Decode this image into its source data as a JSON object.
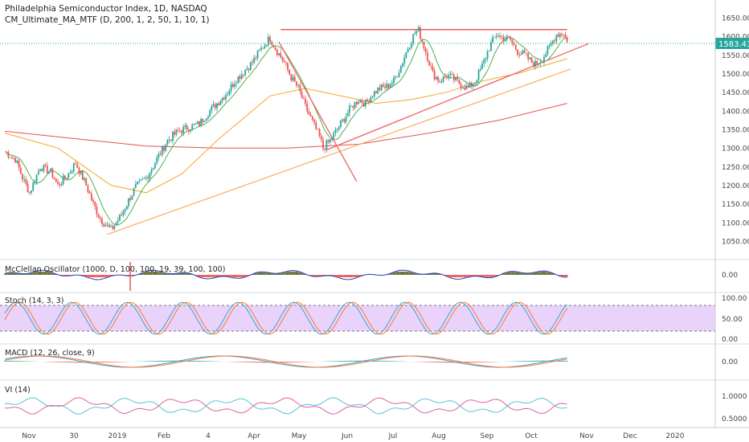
{
  "header": {
    "title": "Philadelphia Semiconductor Index, 1D, NASDAQ",
    "indicator": "CM_Ultimate_MA_MTF (D, 200, 1, 2, 50, 1, 10, 1)"
  },
  "price_tag": "1583.43",
  "panels": {
    "mcclellan": {
      "label": "McClellan Oscillator (1000, D, 100, 100, 19, 39, 100, 100)",
      "ticks": [
        "0.00"
      ]
    },
    "stoch": {
      "label": "Stoch (14, 3, 3)",
      "ticks": [
        "100.00",
        "50.00",
        "0.00"
      ]
    },
    "macd": {
      "label": "MACD (12, 26, close, 9)",
      "ticks": [
        "0.00"
      ]
    },
    "vi": {
      "label": "VI (14)",
      "ticks": [
        "1.0000",
        "0.5000"
      ]
    }
  },
  "colors": {
    "up": "#26a69a",
    "down": "#ef5350",
    "ma10": "#4caf50",
    "ma50": "#f5a623",
    "ma200": "#e0524f",
    "support_orange": "#f8b26a",
    "trend_red": "#f06262",
    "resistance": "#ef5350",
    "stoch_band": "#e1c4fa",
    "mcclellan_line": "#2a3bb5",
    "mcclellan_fill": "#5d6e2a",
    "macd_line": "#3aa3d6",
    "signal_line": "#ff7a2f",
    "vi_plus": "#5bc0de",
    "vi_minus": "#e0609a",
    "price_tag_bg": "#26a69a"
  },
  "chart_data": {
    "type": "candlestick",
    "title": "Philadelphia Semiconductor Index, 1D, NASDAQ",
    "x_tick_labels": [
      "Nov",
      "30",
      "2019",
      "Feb",
      "4",
      "Apr",
      "May",
      "Jun",
      "Jul",
      "Aug",
      "Sep",
      "Oct",
      "Nov",
      "Dec",
      "2020"
    ],
    "y_tick_labels": [
      "1650.00",
      "1600.00",
      "1550.00",
      "1500.00",
      "1450.00",
      "1400.00",
      "1350.00",
      "1300.00",
      "1250.00",
      "1200.00",
      "1150.00",
      "1100.00",
      "1050.00"
    ],
    "ylim": [
      1020,
      1670
    ],
    "last_price": 1583.43,
    "price_anchors": [
      [
        0,
        1290
      ],
      [
        6,
        1270
      ],
      [
        10,
        1220
      ],
      [
        14,
        1180
      ],
      [
        20,
        1250
      ],
      [
        26,
        1235
      ],
      [
        30,
        1200
      ],
      [
        36,
        1230
      ],
      [
        40,
        1260
      ],
      [
        46,
        1200
      ],
      [
        50,
        1150
      ],
      [
        54,
        1110
      ],
      [
        56,
        1100
      ],
      [
        60,
        1080
      ],
      [
        66,
        1120
      ],
      [
        70,
        1160
      ],
      [
        74,
        1195
      ],
      [
        80,
        1220
      ],
      [
        86,
        1270
      ],
      [
        92,
        1320
      ],
      [
        98,
        1345
      ],
      [
        104,
        1355
      ],
      [
        110,
        1365
      ],
      [
        116,
        1400
      ],
      [
        122,
        1430
      ],
      [
        126,
        1450
      ],
      [
        130,
        1480
      ],
      [
        136,
        1510
      ],
      [
        140,
        1530
      ],
      [
        144,
        1560
      ],
      [
        148,
        1585
      ],
      [
        150,
        1595
      ],
      [
        154,
        1560
      ],
      [
        158,
        1530
      ],
      [
        162,
        1490
      ],
      [
        166,
        1460
      ],
      [
        170,
        1410
      ],
      [
        174,
        1370
      ],
      [
        178,
        1330
      ],
      [
        180,
        1300
      ],
      [
        184,
        1320
      ],
      [
        188,
        1350
      ],
      [
        192,
        1380
      ],
      [
        196,
        1410
      ],
      [
        200,
        1430
      ],
      [
        204,
        1420
      ],
      [
        208,
        1445
      ],
      [
        212,
        1460
      ],
      [
        216,
        1465
      ],
      [
        220,
        1480
      ],
      [
        224,
        1520
      ],
      [
        228,
        1570
      ],
      [
        232,
        1610
      ],
      [
        234,
        1615
      ],
      [
        238,
        1560
      ],
      [
        242,
        1500
      ],
      [
        246,
        1480
      ],
      [
        250,
        1495
      ],
      [
        254,
        1485
      ],
      [
        258,
        1470
      ],
      [
        262,
        1460
      ],
      [
        266,
        1480
      ],
      [
        270,
        1520
      ],
      [
        274,
        1570
      ],
      [
        278,
        1605
      ],
      [
        282,
        1595
      ],
      [
        286,
        1590
      ],
      [
        290,
        1560
      ],
      [
        294,
        1550
      ],
      [
        298,
        1530
      ],
      [
        300,
        1525
      ],
      [
        304,
        1540
      ],
      [
        308,
        1570
      ],
      [
        312,
        1605
      ],
      [
        316,
        1610
      ],
      [
        318,
        1583.43
      ]
    ],
    "moving_averages": [
      {
        "name": "MA 200",
        "color": "#e0524f",
        "points": [
          [
            0,
            1345
          ],
          [
            40,
            1325
          ],
          [
            80,
            1305
          ],
          [
            120,
            1300
          ],
          [
            160,
            1300
          ],
          [
            200,
            1310
          ],
          [
            240,
            1340
          ],
          [
            280,
            1375
          ],
          [
            318,
            1420
          ]
        ]
      },
      {
        "name": "MA 50",
        "color": "#f5a623",
        "points": [
          [
            0,
            1340
          ],
          [
            30,
            1300
          ],
          [
            60,
            1200
          ],
          [
            80,
            1180
          ],
          [
            100,
            1230
          ],
          [
            120,
            1320
          ],
          [
            150,
            1440
          ],
          [
            170,
            1460
          ],
          [
            190,
            1440
          ],
          [
            210,
            1420
          ],
          [
            230,
            1430
          ],
          [
            250,
            1450
          ],
          [
            270,
            1480
          ],
          [
            290,
            1500
          ],
          [
            318,
            1540
          ]
        ]
      },
      {
        "name": "MA 10",
        "color": "#4caf50",
        "points": "derived from price"
      }
    ],
    "trendlines": [
      {
        "name": "resistance",
        "color": "#ef5350",
        "from": [
          156,
          1618
        ],
        "to": [
          318,
          1618
        ]
      },
      {
        "name": "support-2019",
        "color": "#f8b26a",
        "from": [
          58,
          1068
        ],
        "to": [
          320,
          1512
        ]
      },
      {
        "name": "rising-channel",
        "color": "#f06262",
        "from": [
          182,
          1295
        ],
        "to": [
          330,
          1580
        ]
      },
      {
        "name": "down-leg",
        "color": "#f06262",
        "from": [
          155,
          1585
        ],
        "to": [
          199,
          1210
        ]
      }
    ]
  }
}
